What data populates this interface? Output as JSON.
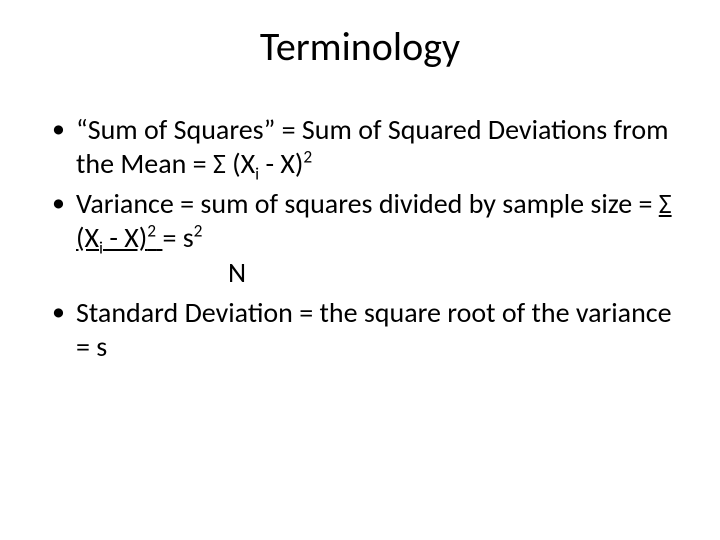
{
  "slide": {
    "title": "Terminology",
    "title_fontsize": 40,
    "body_fontsize": 28,
    "background_color": "#ffffff",
    "text_color": "#000000",
    "bullets": [
      {
        "text_before_formula": "“Sum of Squares” = Sum of Squared Deviations from the Mean = ",
        "sigma": "Σ",
        "paren_open": " (X",
        "subscript": "i",
        "mid": " - X)",
        "superscript": "2"
      },
      {
        "text_before_formula": "Variance = sum of squares divided by sample size = ",
        "sigma": "Σ",
        "paren_open": " (X",
        "subscript": "i",
        "mid": " - X)",
        "superscript": "2",
        "after_frac": " = s",
        "after_frac_sup": "2",
        "denominator_indent": "           ",
        "denominator": "N"
      },
      {
        "text": "Standard Deviation = the square root of the variance = s"
      }
    ]
  }
}
